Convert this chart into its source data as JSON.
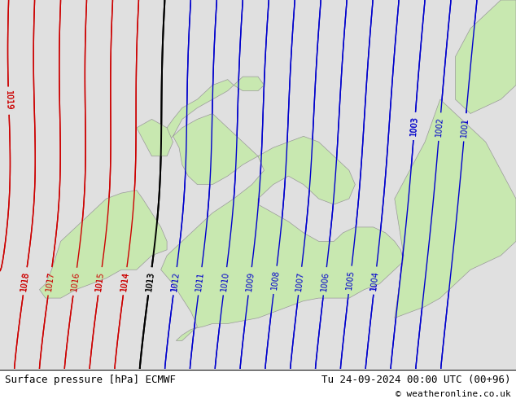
{
  "title_left": "Surface pressure [hPa] ECMWF",
  "title_right": "Tu 24-09-2024 00:00 UTC (00+96)",
  "copyright": "© weatheronline.co.uk",
  "background_color": "#e0e0e0",
  "land_color": "#c8e8b0",
  "coast_color": "#999999",
  "isobar_blue_color": "#0000cc",
  "isobar_red_color": "#cc0000",
  "isobar_black_color": "#000000",
  "label_fontsize": 7,
  "footer_fontsize": 9,
  "figsize": [
    6.34,
    4.9
  ],
  "dpi": 100,
  "lon_min": -11.5,
  "lon_max": 5.5,
  "lat_min": 49.0,
  "lat_max": 62.0
}
